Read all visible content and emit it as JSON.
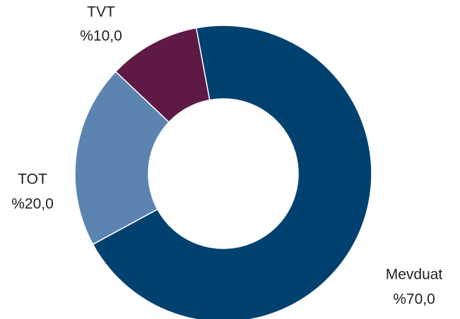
{
  "chart_data": {
    "type": "donut",
    "categories": [
      "Mevduat",
      "TOT",
      "TVT"
    ],
    "values": [
      70,
      20,
      10
    ],
    "value_labels": [
      "%70,0",
      "%20,0",
      "%10,0"
    ],
    "colors": [
      "#00416f",
      "#5b84b1",
      "#5e1a45"
    ]
  }
}
